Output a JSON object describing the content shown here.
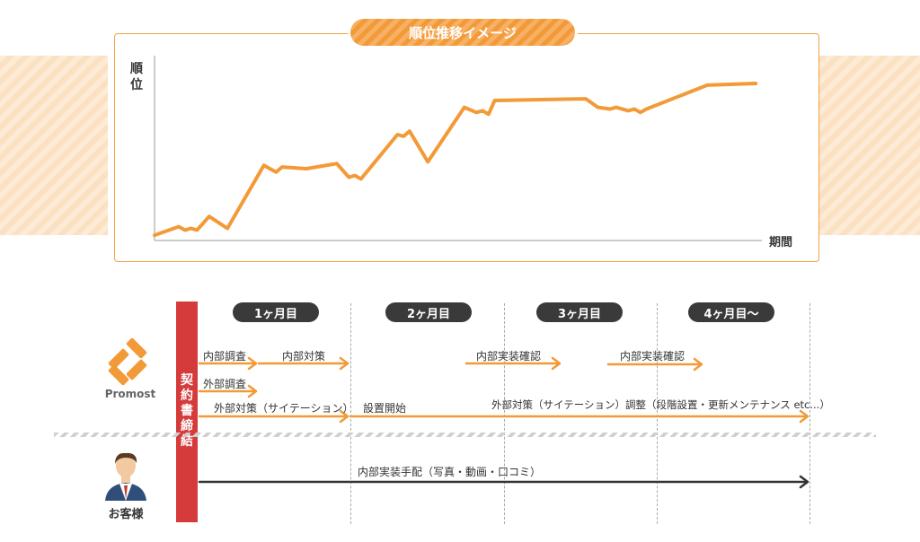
{
  "chart_title": "順位推移イメージ",
  "chart_data": {
    "type": "line",
    "title": "順位推移イメージ",
    "ylabel": "順位",
    "xlabel": "期間",
    "xlim": [
      0,
      100
    ],
    "ylim": [
      0,
      100
    ],
    "grid": false,
    "series": [
      {
        "values": [
          [
            0,
            1
          ],
          [
            4,
            6
          ],
          [
            5,
            4
          ],
          [
            6,
            5
          ],
          [
            7,
            4
          ],
          [
            9,
            12
          ],
          [
            12,
            5
          ],
          [
            18,
            42
          ],
          [
            20,
            38
          ],
          [
            21,
            41
          ],
          [
            25,
            40
          ],
          [
            30,
            43
          ],
          [
            32,
            35
          ],
          [
            33,
            36
          ],
          [
            34,
            34
          ],
          [
            40,
            60
          ],
          [
            41,
            59
          ],
          [
            42,
            62
          ],
          [
            45,
            44
          ],
          [
            51,
            76
          ],
          [
            53,
            73
          ],
          [
            54,
            74
          ],
          [
            55,
            72
          ],
          [
            56,
            80
          ],
          [
            71,
            81
          ],
          [
            73,
            76
          ],
          [
            75,
            75
          ],
          [
            76,
            76
          ],
          [
            78,
            74
          ],
          [
            79,
            75
          ],
          [
            80,
            73
          ],
          [
            81,
            75
          ],
          [
            86,
            82
          ],
          [
            91,
            89
          ],
          [
            99,
            90
          ]
        ],
        "color": "#f39a38"
      }
    ]
  },
  "timeline": {
    "months": [
      "1ヶ月目",
      "2ヶ月目",
      "3ヶ月目",
      "4ヶ月目〜"
    ],
    "contract": "契約書締結",
    "company": "Promost",
    "customer": "お客様",
    "tasks": {
      "internal_survey": "内部調査",
      "internal_measures": "内部対策",
      "internal_impl_check_1": "内部実装確認",
      "internal_impl_check_2": "内部実装確認",
      "external_survey": "外部調査",
      "citation": "外部対策（サイテーション）",
      "setup_start": "設置開始",
      "citation_adjust": "外部対策（サイテーション）調整（段階設置・更新メンテナンス etc...）",
      "customer_task": "内部実装手配（写真・動画・口コミ）"
    }
  },
  "colors": {
    "accent": "#f39a38",
    "contract": "#d63b3b",
    "dark": "#3a3a3a"
  }
}
